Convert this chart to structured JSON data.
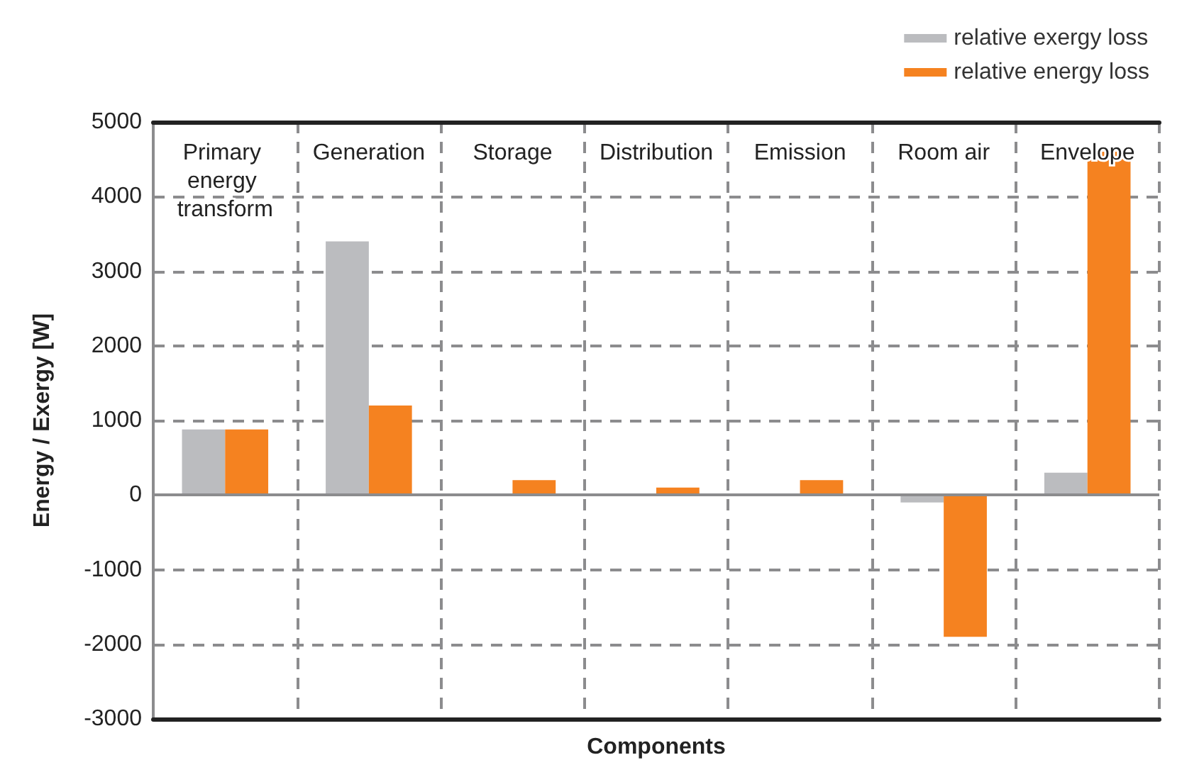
{
  "chart_data": {
    "type": "bar",
    "xlabel": "Components",
    "ylabel": "Energy / Exergy [W]",
    "categories": [
      "Primary energy transform",
      "Generation",
      "Storage",
      "Distribution",
      "Emission",
      "Room air",
      "Envelope"
    ],
    "series": [
      {
        "name": "relative exergy loss",
        "color": "#bbbcbf",
        "values": [
          880,
          3400,
          0,
          0,
          0,
          -100,
          300
        ]
      },
      {
        "name": "relative energy loss",
        "color": "#f58220",
        "values": [
          880,
          1200,
          200,
          100,
          200,
          -1900,
          4600
        ]
      }
    ],
    "ylim": [
      -3000,
      5000
    ],
    "yticks": [
      -3000,
      -2000,
      -1000,
      0,
      1000,
      2000,
      3000,
      4000,
      5000
    ],
    "ref_lines": [
      {
        "axis": "y",
        "value": 0,
        "color": "#8c8c8e",
        "line_style": "solid"
      }
    ],
    "grid": true,
    "legend": "top right"
  }
}
